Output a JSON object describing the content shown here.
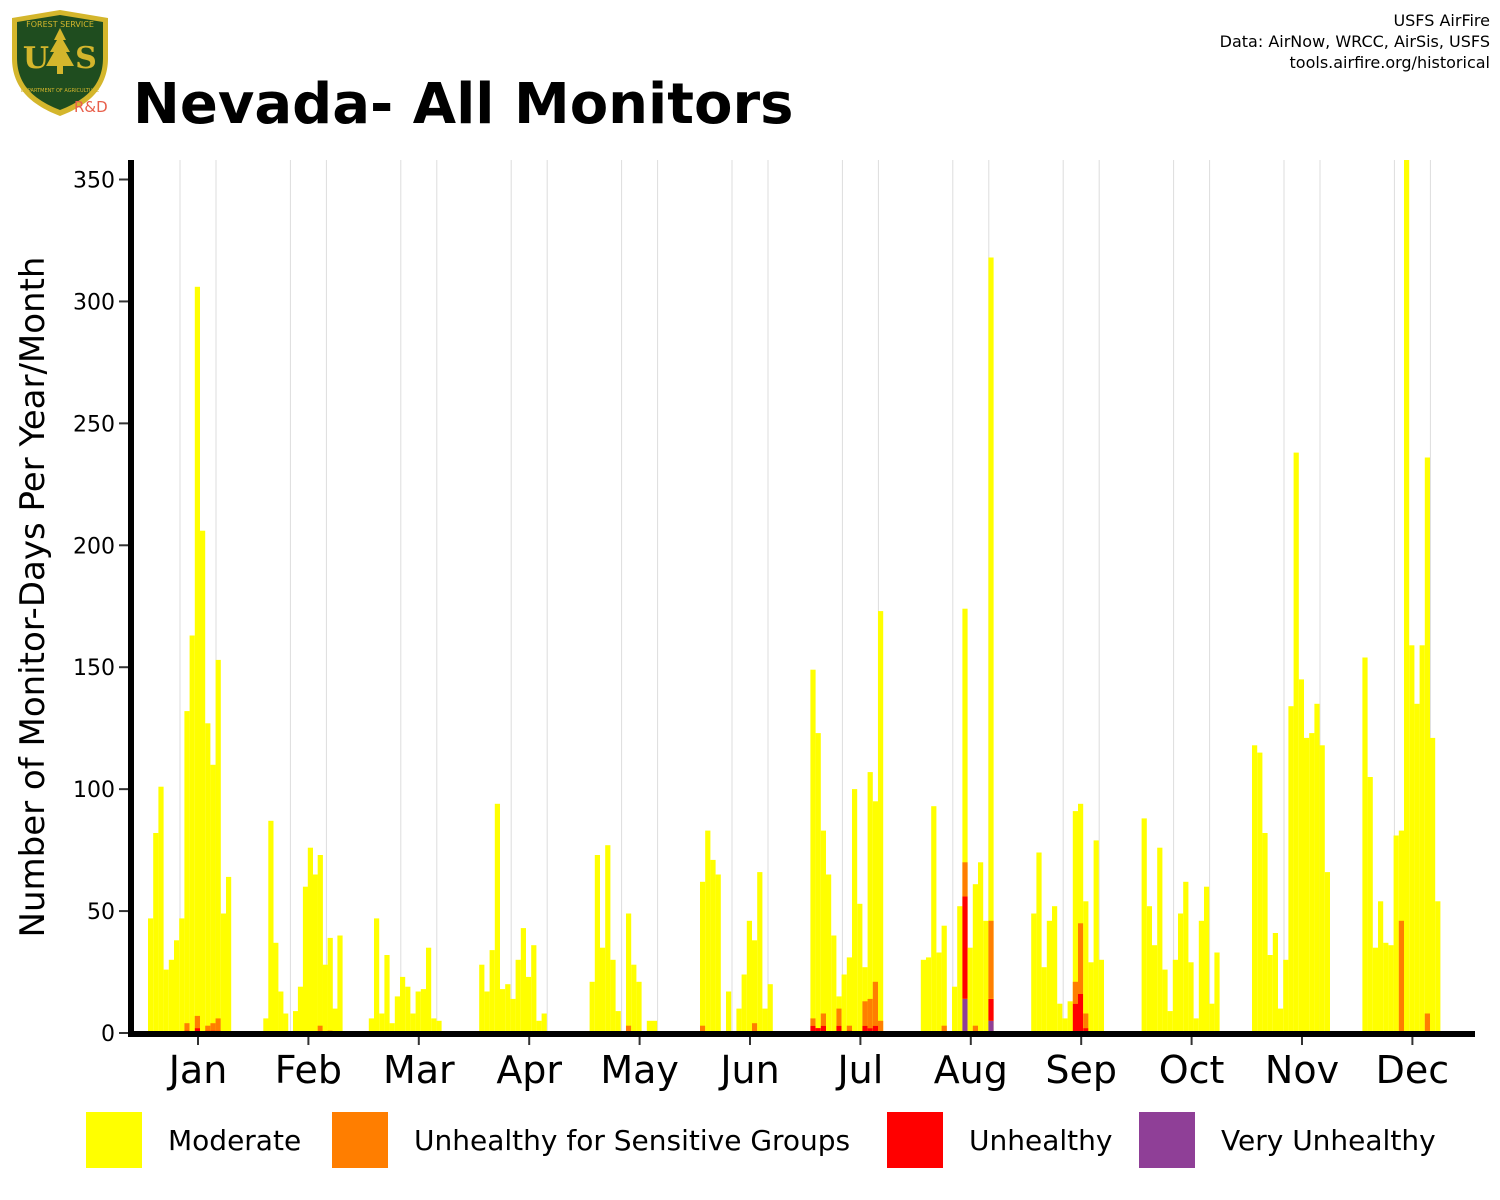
{
  "header": {
    "title": "Nevada- All Monitors",
    "logo_text_top": "FOREST SERVICE",
    "logo_text_main": "US",
    "logo_text_bottom": "DEPARTMENT OF AGRICULTURE",
    "logo_suffix": "R&D",
    "credits": [
      "USFS AirFire",
      "Data: AirNow, WRCC, AirSis, USFS",
      "tools.airfire.org/historical"
    ]
  },
  "colors": {
    "moderate": "#ffff00",
    "usg": "#ff7e00",
    "unhealthy": "#ff0000",
    "very_unhealthy": "#8f3f97",
    "logo_green": "#1f4d1f",
    "logo_gold": "#d4b62c"
  },
  "legend": [
    {
      "label": "Moderate",
      "color": "#ffff00"
    },
    {
      "label": "Unhealthy for Sensitive Groups",
      "color": "#ff7e00"
    },
    {
      "label": "Unhealthy",
      "color": "#ff0000"
    },
    {
      "label": "Very Unhealthy",
      "color": "#8f3f97"
    }
  ],
  "chart_data": {
    "type": "bar",
    "stacked": true,
    "ylabel": "Number of Monitor-Days Per Year/Month",
    "ylim": [
      0,
      358
    ],
    "yticks": [
      0,
      50,
      100,
      150,
      200,
      250,
      300,
      350
    ],
    "categories": [
      "Jan",
      "Feb",
      "Mar",
      "Apr",
      "May",
      "Jun",
      "Jul",
      "Aug",
      "Sep",
      "Oct",
      "Nov",
      "Dec"
    ],
    "grid": "vertical",
    "series_names": [
      "Moderate",
      "Unhealthy for Sensitive Groups",
      "Unhealthy",
      "Very Unhealthy"
    ],
    "months": [
      {
        "moderate": [
          47,
          82,
          101,
          26,
          30,
          38,
          47,
          132,
          163,
          306,
          206,
          127,
          110,
          153,
          49,
          64
        ],
        "usg": [
          0,
          0,
          0,
          0,
          0,
          0,
          0,
          3,
          0,
          5,
          0,
          2,
          3,
          5,
          0,
          0
        ],
        "unhealthy": [
          0,
          0,
          0,
          0,
          0,
          0,
          0,
          1,
          0,
          2,
          0,
          1,
          1,
          1,
          0,
          0
        ],
        "very_unhealthy": [
          0,
          0,
          0,
          0,
          0,
          0,
          0,
          0,
          0,
          0,
          0,
          0,
          0,
          0,
          0,
          0
        ]
      },
      {
        "moderate": [
          0,
          6,
          87,
          37,
          17,
          8,
          0,
          9,
          19,
          60,
          76,
          65,
          73,
          28,
          39,
          10,
          40
        ],
        "usg": [
          0,
          0,
          0,
          0,
          0,
          0,
          0,
          0,
          0,
          0,
          0,
          0,
          3,
          0,
          1,
          0,
          0
        ],
        "unhealthy": [
          0,
          0,
          0,
          0,
          0,
          0,
          0,
          0,
          0,
          0,
          0,
          0,
          0,
          0,
          0,
          0,
          0
        ],
        "very_unhealthy": [
          0,
          0,
          0,
          0,
          0,
          0,
          0,
          0,
          0,
          0,
          0,
          0,
          0,
          0,
          0,
          0,
          0
        ]
      },
      {
        "moderate": [
          6,
          47,
          8,
          32,
          4,
          15,
          23,
          19,
          8,
          17,
          18,
          35,
          6,
          5
        ],
        "usg": [
          0,
          0,
          0,
          0,
          0,
          0,
          0,
          0,
          0,
          0,
          0,
          0,
          0,
          0
        ],
        "unhealthy": [
          0,
          0,
          0,
          0,
          0,
          0,
          0,
          0,
          0,
          0,
          0,
          0,
          0,
          0
        ],
        "very_unhealthy": [
          0,
          0,
          0,
          0,
          0,
          0,
          0,
          0,
          0,
          0,
          0,
          0,
          0,
          0
        ]
      },
      {
        "moderate": [
          28,
          17,
          34,
          94,
          18,
          20,
          14,
          30,
          43,
          23,
          36,
          5,
          8
        ],
        "usg": [
          0,
          0,
          0,
          0,
          0,
          0,
          0,
          0,
          0,
          0,
          0,
          0,
          0
        ],
        "unhealthy": [
          0,
          0,
          0,
          0,
          0,
          0,
          0,
          0,
          0,
          0,
          0,
          0,
          0
        ],
        "very_unhealthy": [
          0,
          0,
          0,
          0,
          0,
          0,
          0,
          0,
          0,
          0,
          0,
          0,
          0
        ]
      },
      {
        "moderate": [
          21,
          73,
          35,
          77,
          30,
          9,
          0,
          49,
          28,
          21,
          0,
          5,
          5
        ],
        "usg": [
          0,
          0,
          0,
          0,
          0,
          0,
          0,
          3,
          0,
          0,
          0,
          0,
          0
        ],
        "unhealthy": [
          0,
          0,
          0,
          0,
          0,
          0,
          0,
          0,
          0,
          0,
          0,
          0,
          0
        ],
        "very_unhealthy": [
          0,
          0,
          0,
          0,
          0,
          0,
          0,
          0,
          0,
          0,
          0,
          0,
          0
        ]
      },
      {
        "moderate": [
          62,
          83,
          71,
          65,
          0,
          17,
          0,
          10,
          24,
          46,
          38,
          66,
          10,
          20
        ],
        "usg": [
          3,
          0,
          0,
          0,
          0,
          0,
          0,
          0,
          0,
          0,
          4,
          0,
          0,
          0
        ],
        "unhealthy": [
          0,
          0,
          0,
          0,
          0,
          0,
          0,
          0,
          0,
          0,
          0,
          0,
          0,
          0
        ],
        "very_unhealthy": [
          0,
          0,
          0,
          0,
          0,
          0,
          0,
          0,
          0,
          0,
          0,
          0,
          0,
          0
        ]
      },
      {
        "moderate": [
          149,
          123,
          83,
          65,
          40,
          15,
          24,
          31,
          100,
          53,
          27,
          107,
          95,
          173
        ],
        "usg": [
          3,
          0,
          5,
          0,
          0,
          7,
          0,
          2,
          0,
          0,
          10,
          12,
          18,
          5
        ],
        "unhealthy": [
          3,
          2,
          3,
          0,
          0,
          3,
          0,
          1,
          0,
          0,
          3,
          2,
          3,
          0
        ],
        "very_unhealthy": [
          0,
          0,
          0,
          0,
          0,
          0,
          0,
          0,
          0,
          0,
          0,
          0,
          0,
          0
        ]
      },
      {
        "moderate": [
          30,
          31,
          93,
          33,
          44,
          0,
          19,
          52,
          174,
          35,
          61,
          70,
          46,
          318
        ],
        "usg": [
          0,
          0,
          0,
          0,
          3,
          0,
          0,
          0,
          14,
          0,
          3,
          0,
          0,
          32
        ],
        "unhealthy": [
          0,
          0,
          0,
          0,
          0,
          0,
          0,
          0,
          42,
          0,
          0,
          0,
          0,
          9
        ],
        "very_unhealthy": [
          0,
          0,
          0,
          0,
          0,
          0,
          0,
          0,
          14,
          0,
          0,
          0,
          0,
          5
        ]
      },
      {
        "moderate": [
          49,
          74,
          27,
          46,
          52,
          12,
          6,
          13,
          91,
          94,
          54,
          29,
          79,
          30
        ],
        "usg": [
          0,
          0,
          0,
          0,
          0,
          0,
          0,
          0,
          9,
          29,
          6,
          0,
          0,
          0
        ],
        "unhealthy": [
          0,
          0,
          0,
          0,
          0,
          0,
          0,
          0,
          12,
          16,
          2,
          0,
          0,
          0
        ],
        "very_unhealthy": [
          0,
          0,
          0,
          0,
          0,
          0,
          0,
          0,
          0,
          0,
          0,
          0,
          0,
          0
        ]
      },
      {
        "moderate": [
          88,
          52,
          36,
          76,
          26,
          9,
          30,
          49,
          62,
          29,
          6,
          46,
          60,
          12,
          33
        ],
        "usg": [
          0,
          0,
          0,
          0,
          0,
          0,
          0,
          0,
          0,
          0,
          0,
          0,
          0,
          0,
          0
        ],
        "unhealthy": [
          0,
          0,
          0,
          0,
          0,
          0,
          0,
          0,
          0,
          0,
          0,
          0,
          0,
          0,
          0
        ],
        "very_unhealthy": [
          0,
          0,
          0,
          0,
          0,
          0,
          0,
          0,
          0,
          0,
          0,
          0,
          0,
          0,
          0
        ]
      },
      {
        "moderate": [
          118,
          115,
          82,
          32,
          41,
          10,
          30,
          134,
          238,
          145,
          121,
          123,
          135,
          118,
          66
        ],
        "usg": [
          0,
          0,
          0,
          0,
          0,
          0,
          0,
          0,
          0,
          0,
          0,
          0,
          0,
          0,
          0
        ],
        "unhealthy": [
          0,
          0,
          0,
          0,
          0,
          0,
          0,
          0,
          0,
          0,
          0,
          0,
          0,
          0,
          0
        ],
        "very_unhealthy": [
          0,
          0,
          0,
          0,
          0,
          0,
          0,
          0,
          0,
          0,
          0,
          0,
          0,
          0,
          0
        ]
      },
      {
        "moderate": [
          154,
          105,
          35,
          54,
          37,
          36,
          81,
          83,
          358,
          159,
          135,
          159,
          236,
          121,
          54
        ],
        "usg": [
          0,
          0,
          0,
          0,
          0,
          0,
          0,
          46,
          0,
          0,
          0,
          0,
          8,
          0,
          0
        ],
        "unhealthy": [
          0,
          0,
          0,
          0,
          0,
          0,
          0,
          0,
          0,
          0,
          0,
          0,
          0,
          0,
          0
        ],
        "very_unhealthy": [
          0,
          0,
          0,
          0,
          0,
          0,
          0,
          0,
          0,
          0,
          0,
          0,
          0,
          0,
          0
        ]
      }
    ]
  }
}
